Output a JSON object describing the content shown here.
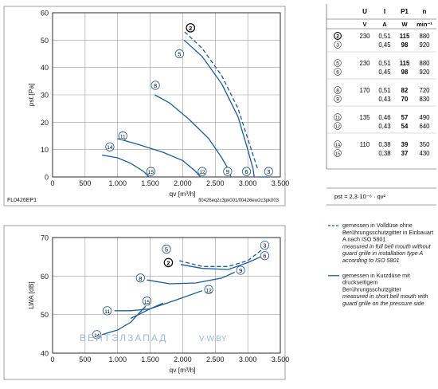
{
  "colors": {
    "curve": "#1f5a96",
    "axis": "#1a1a1a",
    "grid": "#9a9a9a",
    "watermark": "#9fb8d6"
  },
  "chart_data": [
    {
      "type": "line",
      "xlabel": "qv [m³/h]",
      "ylabel": "pst [Pa]",
      "xlim": [
        0,
        3500
      ],
      "ylim": [
        0,
        60
      ],
      "x_ticks": [
        0,
        500,
        1000,
        1500,
        2000,
        2500,
        3000,
        3500
      ],
      "x_tick_labels": [
        "0",
        "500",
        "1.000",
        "1.500",
        "2.000",
        "2.500",
        "3.000",
        "3.500"
      ],
      "y_ticks": [
        0,
        10,
        20,
        30,
        40,
        50,
        60
      ],
      "grid": true,
      "footer_left": "FL0426EP1",
      "footer_right": "fl0426eq2c3pk001/fl0426ew2c3pk003",
      "series": [
        {
          "label": "2",
          "style": "dashed",
          "label_pos": [
            2120,
            54.5
          ],
          "points": [
            [
              2030,
              53
            ],
            [
              2300,
              47
            ],
            [
              2600,
              37
            ],
            [
              2850,
              25
            ],
            [
              3000,
              14
            ],
            [
              3150,
              3
            ]
          ]
        },
        {
          "label": "3",
          "style": "solid",
          "label_pos": [
            3320,
            2
          ],
          "points": [
            [
              3150,
              0
            ],
            [
              3200,
              0
            ],
            [
              3300,
              0
            ]
          ]
        },
        {
          "label": "5",
          "style": "solid",
          "label_pos": [
            1950,
            45
          ],
          "points": [
            [
              2020,
              50
            ],
            [
              2300,
              44
            ],
            [
              2600,
              34
            ],
            [
              2850,
              22
            ],
            [
              3000,
              10
            ],
            [
              3080,
              3
            ]
          ]
        },
        {
          "label": "6",
          "style": "solid",
          "label_pos": [
            2980,
            2
          ],
          "points": [
            [
              3080,
              3
            ],
            [
              3100,
              0
            ]
          ]
        },
        {
          "label": "8",
          "style": "solid",
          "label_pos": [
            1580,
            33.5
          ],
          "points": [
            [
              1570,
              30
            ],
            [
              1800,
              27
            ],
            [
              2100,
              21
            ],
            [
              2400,
              14
            ],
            [
              2600,
              7
            ],
            [
              2720,
              2
            ]
          ]
        },
        {
          "label": "9",
          "style": "solid",
          "label_pos": [
            2690,
            2
          ],
          "points": [
            [
              2720,
              2
            ],
            [
              2740,
              0
            ]
          ]
        },
        {
          "label": "11",
          "style": "solid",
          "label_pos": [
            1080,
            15
          ],
          "points": [
            [
              1000,
              14
            ],
            [
              1300,
              12
            ],
            [
              1700,
              9
            ],
            [
              2000,
              6
            ],
            [
              2200,
              2
            ],
            [
              2270,
              0
            ]
          ]
        },
        {
          "label": "12",
          "style": "solid",
          "label_pos": [
            2300,
            2
          ],
          "points": [
            [
              2270,
              0
            ]
          ]
        },
        {
          "label": "14",
          "style": "solid",
          "label_pos": [
            880,
            11
          ],
          "points": [
            [
              760,
              8
            ],
            [
              1000,
              7
            ],
            [
              1200,
              5
            ],
            [
              1400,
              2
            ],
            [
              1480,
              0
            ]
          ]
        },
        {
          "label": "15",
          "style": "solid",
          "label_pos": [
            1510,
            2
          ],
          "points": [
            [
              1480,
              0
            ]
          ]
        }
      ]
    },
    {
      "type": "line",
      "xlabel": "qv [m³/h]",
      "ylabel": "LWA [dB]",
      "xlim": [
        0,
        3500
      ],
      "ylim": [
        40,
        70
      ],
      "x_ticks": [
        0,
        500,
        1000,
        1500,
        2000,
        2500,
        3000,
        3500
      ],
      "x_tick_labels": [
        "0",
        "500",
        "1.000",
        "1.500",
        "2.000",
        "2.500",
        "3.000",
        "3.500"
      ],
      "y_ticks": [
        40,
        50,
        60,
        70
      ],
      "grid": true,
      "series": [
        {
          "label": "2",
          "style": "dashed",
          "label_pos": [
            1780,
            63.5
          ],
          "points": [
            [
              1950,
              64
            ],
            [
              2300,
              62.5
            ],
            [
              2700,
              62.5
            ],
            [
              3000,
              64
            ],
            [
              3230,
              67
            ]
          ]
        },
        {
          "label": "3",
          "style": "solid",
          "label_pos": [
            3260,
            68
          ],
          "points": [
            [
              3230,
              67
            ]
          ]
        },
        {
          "label": "5",
          "style": "solid",
          "label_pos": [
            1750,
            67
          ],
          "points": [
            [
              1970,
              63
            ],
            [
              2300,
              62
            ],
            [
              2700,
              61.7
            ],
            [
              3000,
              63.5
            ],
            [
              3200,
              65
            ]
          ]
        },
        {
          "label": "6",
          "style": "solid",
          "label_pos": [
            3260,
            65.3
          ],
          "points": [
            [
              3200,
              65
            ]
          ]
        },
        {
          "label": "8",
          "style": "solid",
          "label_pos": [
            1350,
            59.5
          ],
          "points": [
            [
              1450,
              59
            ],
            [
              1800,
              58
            ],
            [
              2200,
              58.2
            ],
            [
              2600,
              59.5
            ],
            [
              2800,
              61
            ]
          ]
        },
        {
          "label": "9",
          "style": "solid",
          "label_pos": [
            2890,
            61.5
          ],
          "points": [
            [
              2800,
              61
            ]
          ]
        },
        {
          "label": "11",
          "style": "solid",
          "label_pos": [
            840,
            51
          ],
          "points": [
            [
              950,
              51
            ],
            [
              1200,
              51
            ],
            [
              1500,
              51.5
            ],
            [
              1700,
              53
            ]
          ]
        },
        {
          "label": "12",
          "style": "solid",
          "label_pos": [
            2400,
            56.5
          ],
          "points": [
            [
              1200,
              49
            ],
            [
              1500,
              51.5
            ],
            [
              1900,
              53.8
            ],
            [
              2300,
              56.2
            ]
          ]
        },
        {
          "label": "14",
          "style": "solid",
          "label_pos": [
            680,
            44.8
          ],
          "points": [
            [
              760,
              44.8
            ],
            [
              1000,
              46
            ],
            [
              1200,
              48
            ],
            [
              1430,
              52.2
            ]
          ]
        },
        {
          "label": "15",
          "style": "solid",
          "label_pos": [
            1450,
            53.5
          ],
          "points": [
            [
              1430,
              52.2
            ]
          ]
        }
      ]
    }
  ],
  "table": {
    "headers": [
      "U",
      "I",
      "P1",
      "n"
    ],
    "units": [
      "V",
      "A",
      "W",
      "min⁻¹"
    ],
    "rows": [
      {
        "id": "2",
        "U": "230",
        "I": "0,51",
        "P": "115",
        "n": "880",
        "bold": true
      },
      {
        "id": "3",
        "U": "",
        "I": "0,45",
        "P": "98",
        "n": "920"
      },
      {
        "id": "5",
        "U": "230",
        "I": "0,51",
        "P": "115",
        "n": "880"
      },
      {
        "id": "6",
        "U": "",
        "I": "0,45",
        "P": "98",
        "n": "920"
      },
      {
        "id": "8",
        "U": "170",
        "I": "0,51",
        "P": "82",
        "n": "720"
      },
      {
        "id": "9",
        "U": "",
        "I": "0,43",
        "P": "70",
        "n": "830"
      },
      {
        "id": "11",
        "U": "135",
        "I": "0,46",
        "P": "57",
        "n": "490"
      },
      {
        "id": "12",
        "U": "",
        "I": "0,43",
        "P": "54",
        "n": "640"
      },
      {
        "id": "14",
        "U": "110",
        "I": "0,38",
        "P": "39",
        "n": "350"
      },
      {
        "id": "15",
        "U": "",
        "I": "0,38",
        "P": "37",
        "n": "430"
      }
    ]
  },
  "formula": "pst = 2,3·10⁻⁶ · qv²",
  "legend": [
    {
      "style": "dashed",
      "de": "gemessen in Volldüse ohne Berührungsschutzgitter in Einbauart A nach ISO 5801",
      "en": "measured in full bell mouth without guard grille in installation type A according to ISO 5801"
    },
    {
      "style": "solid",
      "de": "gemessen in Kurzdüse mit druckseitigem Berührungsschutzgitter",
      "en": "measured in short bell mouth with guard grille on the pressure side"
    }
  ],
  "watermark": {
    "brand": "ВЕНТЭЛЗАПАД",
    "site": "V-W.BY"
  }
}
